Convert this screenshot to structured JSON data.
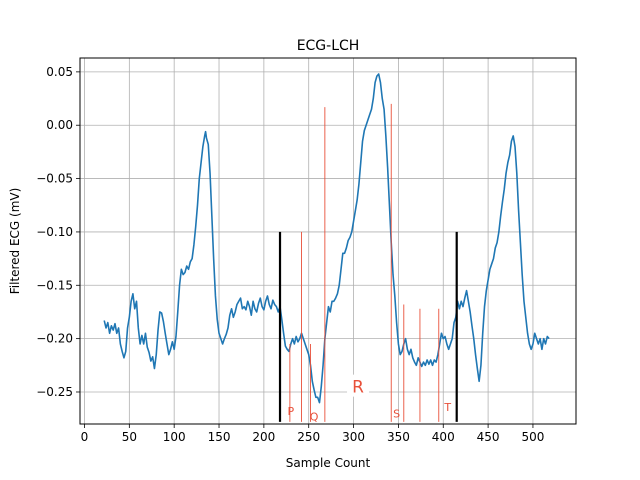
{
  "chart_data": {
    "type": "line",
    "title": "ECG-LCH",
    "xlabel": "Sample Count",
    "ylabel": "Filtered ECG (mV)",
    "xlim": [
      -5,
      548
    ],
    "ylim": [
      -0.28,
      0.063
    ],
    "grid": true,
    "x_ticks": [
      0,
      50,
      100,
      150,
      200,
      250,
      300,
      350,
      400,
      450,
      500
    ],
    "y_ticks": [
      0.05,
      0.0,
      -0.05,
      -0.1,
      -0.15,
      -0.2,
      -0.25
    ],
    "x_tick_labels": [
      "0",
      "50",
      "100",
      "150",
      "200",
      "250",
      "300",
      "350",
      "400",
      "450",
      "500"
    ],
    "y_tick_labels": [
      "0.05",
      "0.00",
      "−0.05",
      "−0.10",
      "−0.15",
      "−0.20",
      "−0.25"
    ],
    "series": [
      {
        "color": "#1f77b4",
        "points": [
          [
            22,
            -0.183
          ],
          [
            24,
            -0.19
          ],
          [
            26,
            -0.185
          ],
          [
            28,
            -0.195
          ],
          [
            30,
            -0.188
          ],
          [
            32,
            -0.192
          ],
          [
            34,
            -0.186
          ],
          [
            36,
            -0.195
          ],
          [
            38,
            -0.19
          ],
          [
            40,
            -0.205
          ],
          [
            42,
            -0.212
          ],
          [
            44,
            -0.218
          ],
          [
            46,
            -0.212
          ],
          [
            48,
            -0.19
          ],
          [
            50,
            -0.18
          ],
          [
            52,
            -0.165
          ],
          [
            54,
            -0.158
          ],
          [
            56,
            -0.172
          ],
          [
            58,
            -0.165
          ],
          [
            60,
            -0.19
          ],
          [
            62,
            -0.205
          ],
          [
            64,
            -0.197
          ],
          [
            66,
            -0.205
          ],
          [
            68,
            -0.195
          ],
          [
            70,
            -0.208
          ],
          [
            72,
            -0.213
          ],
          [
            74,
            -0.221
          ],
          [
            76,
            -0.217
          ],
          [
            78,
            -0.228
          ],
          [
            80,
            -0.215
          ],
          [
            82,
            -0.192
          ],
          [
            84,
            -0.175
          ],
          [
            86,
            -0.176
          ],
          [
            88,
            -0.184
          ],
          [
            90,
            -0.195
          ],
          [
            92,
            -0.205
          ],
          [
            94,
            -0.215
          ],
          [
            96,
            -0.21
          ],
          [
            98,
            -0.203
          ],
          [
            100,
            -0.21
          ],
          [
            102,
            -0.198
          ],
          [
            104,
            -0.175
          ],
          [
            106,
            -0.15
          ],
          [
            108,
            -0.135
          ],
          [
            110,
            -0.14
          ],
          [
            112,
            -0.138
          ],
          [
            114,
            -0.132
          ],
          [
            116,
            -0.135
          ],
          [
            118,
            -0.128
          ],
          [
            120,
            -0.125
          ],
          [
            122,
            -0.112
          ],
          [
            124,
            -0.095
          ],
          [
            126,
            -0.075
          ],
          [
            128,
            -0.05
          ],
          [
            130,
            -0.035
          ],
          [
            132,
            -0.02
          ],
          [
            134,
            -0.01
          ],
          [
            135,
            -0.006
          ],
          [
            136,
            -0.012
          ],
          [
            138,
            -0.018
          ],
          [
            140,
            -0.045
          ],
          [
            142,
            -0.085
          ],
          [
            144,
            -0.125
          ],
          [
            146,
            -0.16
          ],
          [
            148,
            -0.182
          ],
          [
            150,
            -0.195
          ],
          [
            152,
            -0.2
          ],
          [
            154,
            -0.205
          ],
          [
            156,
            -0.2
          ],
          [
            158,
            -0.196
          ],
          [
            160,
            -0.19
          ],
          [
            162,
            -0.178
          ],
          [
            164,
            -0.172
          ],
          [
            166,
            -0.18
          ],
          [
            168,
            -0.175
          ],
          [
            170,
            -0.168
          ],
          [
            172,
            -0.165
          ],
          [
            174,
            -0.162
          ],
          [
            176,
            -0.172
          ],
          [
            178,
            -0.17
          ],
          [
            180,
            -0.173
          ],
          [
            182,
            -0.165
          ],
          [
            184,
            -0.17
          ],
          [
            186,
            -0.178
          ],
          [
            188,
            -0.165
          ],
          [
            190,
            -0.172
          ],
          [
            192,
            -0.175
          ],
          [
            194,
            -0.167
          ],
          [
            196,
            -0.162
          ],
          [
            198,
            -0.17
          ],
          [
            200,
            -0.173
          ],
          [
            202,
            -0.165
          ],
          [
            204,
            -0.16
          ],
          [
            206,
            -0.168
          ],
          [
            208,
            -0.172
          ],
          [
            210,
            -0.164
          ],
          [
            212,
            -0.168
          ],
          [
            214,
            -0.17
          ],
          [
            216,
            -0.175
          ],
          [
            218,
            -0.17
          ],
          [
            220,
            -0.182
          ],
          [
            222,
            -0.195
          ],
          [
            224,
            -0.207
          ],
          [
            226,
            -0.21
          ],
          [
            228,
            -0.212
          ],
          [
            230,
            -0.205
          ],
          [
            232,
            -0.2
          ],
          [
            234,
            -0.205
          ],
          [
            236,
            -0.198
          ],
          [
            238,
            -0.203
          ],
          [
            240,
            -0.2
          ],
          [
            242,
            -0.195
          ],
          [
            244,
            -0.2
          ],
          [
            246,
            -0.205
          ],
          [
            248,
            -0.21
          ],
          [
            250,
            -0.215
          ],
          [
            252,
            -0.225
          ],
          [
            254,
            -0.24
          ],
          [
            256,
            -0.248
          ],
          [
            258,
            -0.255
          ],
          [
            260,
            -0.255
          ],
          [
            262,
            -0.26
          ],
          [
            264,
            -0.245
          ],
          [
            266,
            -0.225
          ],
          [
            268,
            -0.2
          ],
          [
            270,
            -0.185
          ],
          [
            272,
            -0.17
          ],
          [
            274,
            -0.175
          ],
          [
            276,
            -0.165
          ],
          [
            278,
            -0.165
          ],
          [
            280,
            -0.162
          ],
          [
            282,
            -0.158
          ],
          [
            284,
            -0.15
          ],
          [
            286,
            -0.135
          ],
          [
            288,
            -0.12
          ],
          [
            290,
            -0.12
          ],
          [
            292,
            -0.115
          ],
          [
            294,
            -0.108
          ],
          [
            296,
            -0.105
          ],
          [
            298,
            -0.1
          ],
          [
            300,
            -0.09
          ],
          [
            302,
            -0.08
          ],
          [
            304,
            -0.07
          ],
          [
            306,
            -0.055
          ],
          [
            308,
            -0.035
          ],
          [
            310,
            -0.015
          ],
          [
            312,
            -0.005
          ],
          [
            314,
            0.0
          ],
          [
            316,
            0.005
          ],
          [
            318,
            0.01
          ],
          [
            320,
            0.015
          ],
          [
            322,
            0.025
          ],
          [
            324,
            0.04
          ],
          [
            326,
            0.046
          ],
          [
            328,
            0.048
          ],
          [
            330,
            0.04
          ],
          [
            332,
            0.025
          ],
          [
            334,
            0.015
          ],
          [
            336,
            -0.01
          ],
          [
            338,
            -0.04
          ],
          [
            340,
            -0.075
          ],
          [
            342,
            -0.11
          ],
          [
            344,
            -0.14
          ],
          [
            346,
            -0.16
          ],
          [
            348,
            -0.185
          ],
          [
            350,
            -0.205
          ],
          [
            352,
            -0.215
          ],
          [
            354,
            -0.212
          ],
          [
            356,
            -0.205
          ],
          [
            358,
            -0.2
          ],
          [
            360,
            -0.21
          ],
          [
            362,
            -0.215
          ],
          [
            364,
            -0.21
          ],
          [
            366,
            -0.218
          ],
          [
            368,
            -0.222
          ],
          [
            370,
            -0.225
          ],
          [
            372,
            -0.218
          ],
          [
            374,
            -0.222
          ],
          [
            376,
            -0.226
          ],
          [
            378,
            -0.222
          ],
          [
            380,
            -0.225
          ],
          [
            382,
            -0.22
          ],
          [
            384,
            -0.224
          ],
          [
            386,
            -0.22
          ],
          [
            388,
            -0.225
          ],
          [
            390,
            -0.22
          ],
          [
            392,
            -0.222
          ],
          [
            394,
            -0.215
          ],
          [
            396,
            -0.205
          ],
          [
            398,
            -0.195
          ],
          [
            400,
            -0.2
          ],
          [
            402,
            -0.198
          ],
          [
            404,
            -0.205
          ],
          [
            406,
            -0.21
          ],
          [
            408,
            -0.205
          ],
          [
            410,
            -0.2
          ],
          [
            412,
            -0.185
          ],
          [
            414,
            -0.18
          ],
          [
            416,
            -0.165
          ],
          [
            418,
            -0.172
          ],
          [
            420,
            -0.165
          ],
          [
            422,
            -0.17
          ],
          [
            424,
            -0.162
          ],
          [
            426,
            -0.155
          ],
          [
            428,
            -0.165
          ],
          [
            430,
            -0.175
          ],
          [
            432,
            -0.188
          ],
          [
            434,
            -0.2
          ],
          [
            436,
            -0.215
          ],
          [
            438,
            -0.228
          ],
          [
            440,
            -0.24
          ],
          [
            442,
            -0.225
          ],
          [
            444,
            -0.195
          ],
          [
            446,
            -0.17
          ],
          [
            448,
            -0.155
          ],
          [
            450,
            -0.145
          ],
          [
            452,
            -0.135
          ],
          [
            454,
            -0.13
          ],
          [
            456,
            -0.125
          ],
          [
            458,
            -0.115
          ],
          [
            460,
            -0.11
          ],
          [
            462,
            -0.1
          ],
          [
            464,
            -0.085
          ],
          [
            466,
            -0.072
          ],
          [
            468,
            -0.06
          ],
          [
            470,
            -0.045
          ],
          [
            472,
            -0.035
          ],
          [
            474,
            -0.028
          ],
          [
            476,
            -0.015
          ],
          [
            478,
            -0.01
          ],
          [
            480,
            -0.02
          ],
          [
            482,
            -0.045
          ],
          [
            484,
            -0.08
          ],
          [
            486,
            -0.11
          ],
          [
            488,
            -0.14
          ],
          [
            490,
            -0.165
          ],
          [
            492,
            -0.18
          ],
          [
            494,
            -0.195
          ],
          [
            496,
            -0.205
          ],
          [
            498,
            -0.21
          ],
          [
            500,
            -0.205
          ],
          [
            502,
            -0.195
          ],
          [
            504,
            -0.2
          ],
          [
            506,
            -0.205
          ],
          [
            508,
            -0.2
          ],
          [
            510,
            -0.21
          ],
          [
            512,
            -0.2
          ],
          [
            514,
            -0.205
          ],
          [
            516,
            -0.198
          ],
          [
            518,
            -0.2
          ]
        ]
      }
    ],
    "boundary_lines": {
      "color": "#000000",
      "lines": [
        {
          "x": 218,
          "y_top": -0.1,
          "y_bottom": -0.278
        },
        {
          "x": 415,
          "y_top": -0.1,
          "y_bottom": -0.278
        }
      ]
    },
    "marker_lines": {
      "color": "#e8503a",
      "lines": [
        {
          "x": 229,
          "y_top": -0.205,
          "y_bottom": -0.278
        },
        {
          "x": 242,
          "y_top": -0.1,
          "y_bottom": -0.278
        },
        {
          "x": 252,
          "y_top": -0.205,
          "y_bottom": -0.278
        },
        {
          "x": 268,
          "y_top": 0.017,
          "y_bottom": -0.278
        },
        {
          "x": 342,
          "y_top": 0.02,
          "y_bottom": -0.278
        },
        {
          "x": 356,
          "y_top": -0.168,
          "y_bottom": -0.278
        },
        {
          "x": 374,
          "y_top": -0.172,
          "y_bottom": -0.278
        },
        {
          "x": 395,
          "y_top": -0.172,
          "y_bottom": -0.278
        }
      ]
    },
    "annotations": [
      {
        "text": "P",
        "x": 230,
        "y": -0.268,
        "size": "small"
      },
      {
        "text": "Q",
        "x": 256,
        "y": -0.273,
        "size": "small"
      },
      {
        "text": "R",
        "x": 305,
        "y": -0.245,
        "size": "large"
      },
      {
        "text": "S",
        "x": 348,
        "y": -0.27,
        "size": "small"
      },
      {
        "text": "T",
        "x": 405,
        "y": -0.264,
        "size": "small"
      }
    ]
  }
}
